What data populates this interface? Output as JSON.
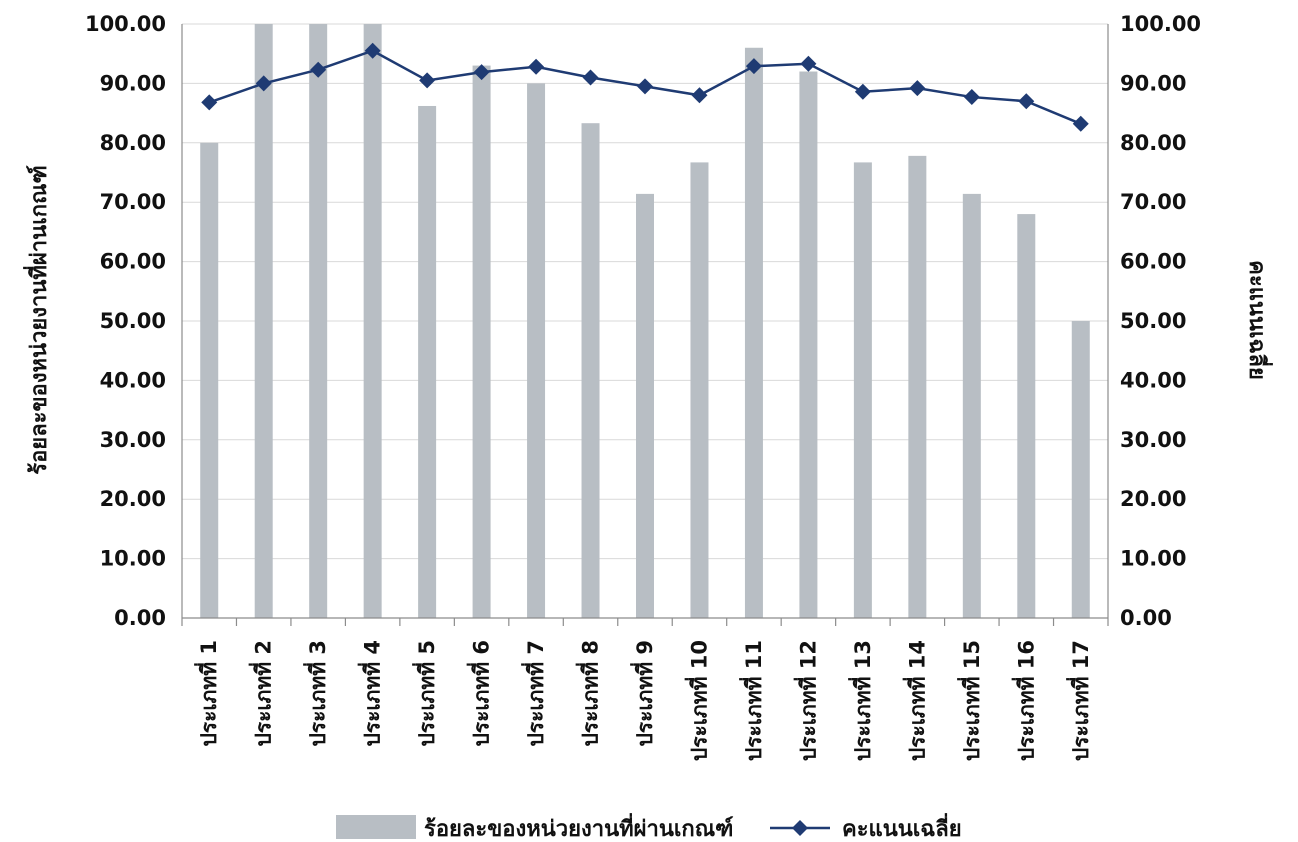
{
  "chart_data": {
    "type": "bar",
    "categories": [
      "ประเภทที่ 1",
      "ประเภทที่ 2",
      "ประเภทที่ 3",
      "ประเภทที่ 4",
      "ประเภทที่ 5",
      "ประเภทที่ 6",
      "ประเภทที่ 7",
      "ประเภทที่ 8",
      "ประเภทที่ 9",
      "ประเภทที่ 10",
      "ประเภทที่ 11",
      "ประเภทที่ 12",
      "ประเภทที่ 13",
      "ประเภทที่ 14",
      "ประเภทที่ 15",
      "ประเภทที่ 16",
      "ประเภทที่ 17"
    ],
    "series": [
      {
        "name": "ร้อยละของหน่วยงานที่ผ่านเกณฑ์",
        "type": "bar",
        "axis": "left",
        "color": "#b8bec4",
        "values": [
          80.0,
          100.0,
          100.0,
          100.0,
          86.2,
          93.0,
          90.0,
          83.3,
          71.4,
          76.7,
          96.0,
          92.0,
          76.7,
          77.8,
          71.4,
          68.0,
          50.0
        ]
      },
      {
        "name": "คะแนนเฉลี่ย",
        "type": "line",
        "axis": "right",
        "color": "#1f3b73",
        "marker": "diamond",
        "values": [
          86.8,
          90.0,
          92.3,
          95.5,
          90.5,
          91.9,
          92.8,
          91.0,
          89.5,
          88.0,
          92.9,
          93.3,
          88.6,
          89.2,
          87.7,
          87.0,
          83.2
        ]
      }
    ],
    "ylabel": "ร้อยละของหน่วยงานที่ผ่านเกณฑ์",
    "y2label": "คะแนนเฉลี่ย",
    "ylim": [
      0,
      100
    ],
    "y2lim": [
      0,
      100
    ],
    "yticks": [
      "0.00",
      "10.00",
      "20.00",
      "30.00",
      "40.00",
      "50.00",
      "60.00",
      "70.00",
      "80.00",
      "90.00",
      "100.00"
    ],
    "grid": true,
    "legend_position": "bottom"
  }
}
